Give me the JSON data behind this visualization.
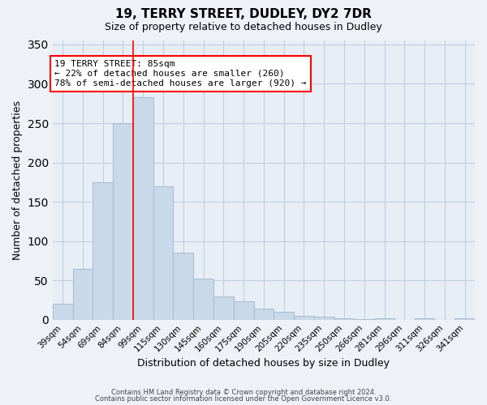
{
  "title": "19, TERRY STREET, DUDLEY, DY2 7DR",
  "subtitle": "Size of property relative to detached houses in Dudley",
  "xlabel": "Distribution of detached houses by size in Dudley",
  "ylabel": "Number of detached properties",
  "bar_color": "#cad9ea",
  "bar_edge_color": "#a8bfd4",
  "categories": [
    "39sqm",
    "54sqm",
    "69sqm",
    "84sqm",
    "99sqm",
    "115sqm",
    "130sqm",
    "145sqm",
    "160sqm",
    "175sqm",
    "190sqm",
    "205sqm",
    "220sqm",
    "235sqm",
    "250sqm",
    "266sqm",
    "281sqm",
    "296sqm",
    "311sqm",
    "326sqm",
    "341sqm"
  ],
  "values": [
    20,
    65,
    175,
    250,
    283,
    170,
    85,
    52,
    30,
    23,
    14,
    10,
    5,
    4,
    2,
    1,
    2,
    0,
    2,
    0,
    2
  ],
  "ylim": [
    0,
    355
  ],
  "yticks": [
    0,
    50,
    100,
    150,
    200,
    250,
    300,
    350
  ],
  "red_line_x": 3.5,
  "annotation_text": "19 TERRY STREET: 85sqm\n← 22% of detached houses are smaller (260)\n78% of semi-detached houses are larger (920) →",
  "footer_line1": "Contains HM Land Registry data © Crown copyright and database right 2024.",
  "footer_line2": "Contains public sector information licensed under the Open Government Licence v3.0.",
  "background_color": "#eef2f7",
  "plot_background_color": "#e8eef5",
  "grid_color": "#c0cfe0"
}
